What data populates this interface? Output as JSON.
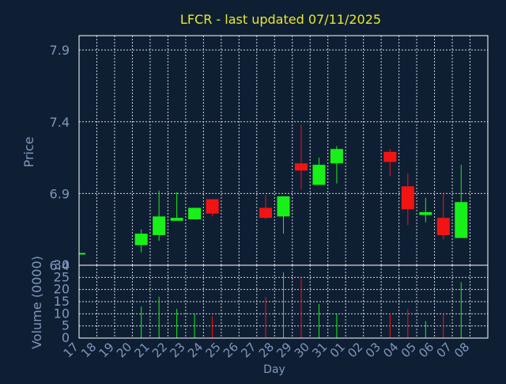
{
  "title": "LFCR - last updated 07/11/2025",
  "colors": {
    "background": "#0f1f33",
    "axis": "#ffffff",
    "grid": "#cfd6df",
    "title": "#e8e82a",
    "label": "#7f97bd",
    "up": "#19f019",
    "down": "#f21414"
  },
  "chart_data": {
    "type": "candlestick",
    "title": "LFCR - last updated 07/11/2025",
    "xlabel": "Day",
    "ylabel": "Price",
    "volume_label": "Volume (0000)",
    "x_ticks": [
      "17",
      "18",
      "19",
      "20",
      "21",
      "22",
      "23",
      "24",
      "25",
      "26",
      "27",
      "28",
      "29",
      "30",
      "31",
      "01",
      "02",
      "03",
      "04",
      "05",
      "06",
      "07",
      "08"
    ],
    "y_ticks": [
      "6.4",
      "6.9",
      "7.4",
      "7.9"
    ],
    "y_range": [
      6.4,
      8.0
    ],
    "volume_ticks": [
      "0",
      "5",
      "10",
      "15",
      "20",
      "25",
      "30"
    ],
    "volume_range": [
      0,
      30
    ],
    "grid": true,
    "candles": [
      {
        "day": "17",
        "open": 6.48,
        "close": 6.48,
        "high": 6.48,
        "low": 6.48,
        "volume": 0
      },
      {
        "day": "20",
        "open": 6.54,
        "close": 6.62,
        "high": 6.65,
        "low": 6.49,
        "volume": 13
      },
      {
        "day": "21",
        "open": 6.61,
        "close": 6.74,
        "high": 6.92,
        "low": 6.57,
        "volume": 17
      },
      {
        "day": "22",
        "open": 6.71,
        "close": 6.73,
        "high": 6.91,
        "low": 6.71,
        "volume": 12
      },
      {
        "day": "23",
        "open": 6.72,
        "close": 6.8,
        "high": 6.8,
        "low": 6.72,
        "volume": 10
      },
      {
        "day": "24",
        "open": 6.86,
        "close": 6.76,
        "high": 6.86,
        "low": 6.74,
        "volume": 9
      },
      {
        "day": "27",
        "open": 6.8,
        "close": 6.73,
        "high": 6.89,
        "low": 6.72,
        "volume": 17
      },
      {
        "day": "28",
        "open": 6.74,
        "close": 6.88,
        "high": 6.88,
        "low": 6.62,
        "volume": 27
      },
      {
        "day": "29",
        "open": 7.11,
        "close": 7.06,
        "high": 7.38,
        "low": 6.93,
        "volume": 25
      },
      {
        "day": "30",
        "open": 6.96,
        "close": 7.1,
        "high": 7.15,
        "low": 6.96,
        "volume": 14
      },
      {
        "day": "31",
        "open": 7.11,
        "close": 7.21,
        "high": 7.23,
        "low": 6.97,
        "volume": 10
      },
      {
        "day": "03",
        "open": 7.19,
        "close": 7.12,
        "high": 7.21,
        "low": 7.02,
        "volume": 10
      },
      {
        "day": "04",
        "open": 6.95,
        "close": 6.79,
        "high": 7.04,
        "low": 6.68,
        "volume": 12
      },
      {
        "day": "05",
        "open": 6.75,
        "close": 6.77,
        "high": 6.87,
        "low": 6.7,
        "volume": 7
      },
      {
        "day": "06",
        "open": 6.73,
        "close": 6.61,
        "high": 6.9,
        "low": 6.58,
        "volume": 10
      },
      {
        "day": "07",
        "open": 6.59,
        "close": 6.84,
        "high": 7.1,
        "low": 6.59,
        "volume": 23
      }
    ]
  }
}
